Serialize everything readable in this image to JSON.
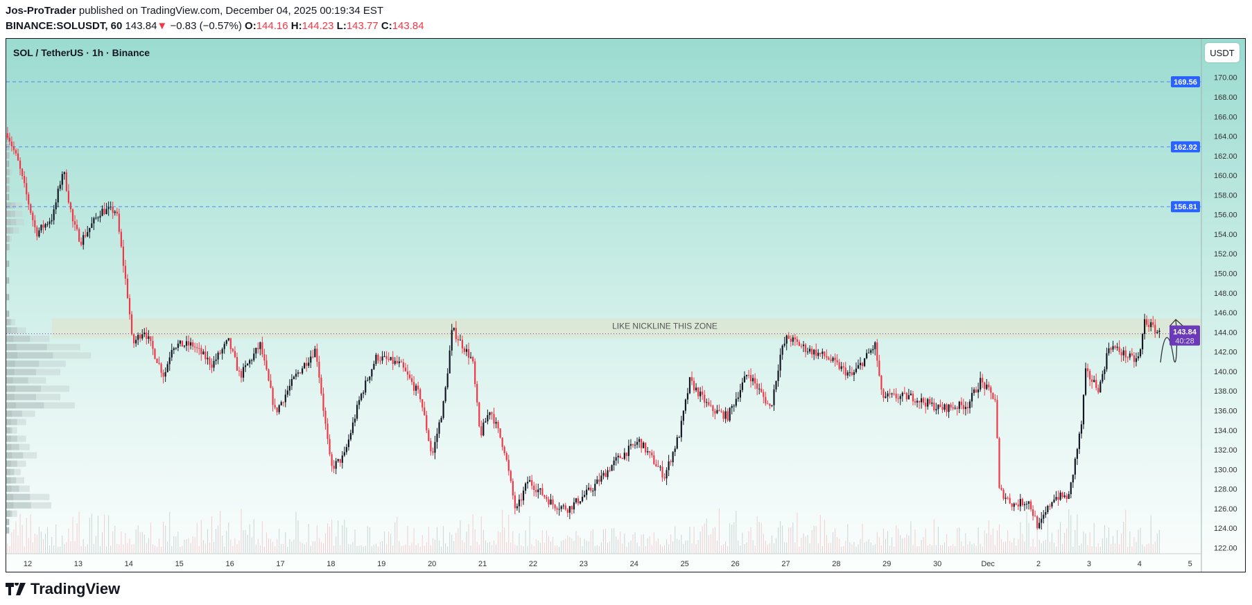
{
  "header": {
    "author": "Jos-ProTrader",
    "published": "published on TradingView.com, December 04, 2025 00:19:34 EST",
    "symbol": "BINANCE:SOLUSDT, 60",
    "last": "143.84",
    "change": "−0.83 (−0.57%)",
    "o_label": "O:",
    "o": "144.16",
    "h_label": "H:",
    "h": "144.23",
    "l_label": "L:",
    "l": "143.77",
    "c_label": "C:",
    "c": "143.84"
  },
  "chart_title": "SOL / TetherUS · 1h · Binance",
  "currency_button": "USDT",
  "logo_text": "TradingView",
  "colors": {
    "up": "#131722",
    "down": "#f23645",
    "level": "#2962ff",
    "price_tag": "#6a3ab8",
    "zone": "#dfe6d0"
  },
  "chart_data": {
    "type": "candlestick",
    "title": "SOL / TetherUS · 1h · Binance",
    "ylabel": "USDT",
    "ylim": [
      121,
      171.5
    ],
    "yticks": [
      "122.00",
      "124.00",
      "126.00",
      "128.00",
      "130.00",
      "132.00",
      "134.00",
      "136.00",
      "138.00",
      "140.00",
      "142.00",
      "144.00",
      "146.00",
      "148.00",
      "150.00",
      "152.00",
      "154.00",
      "156.00",
      "158.00",
      "160.00",
      "162.00",
      "164.00",
      "166.00",
      "168.00",
      "170.00"
    ],
    "x_day_range": [
      11.45,
      35.8
    ],
    "xticks": [
      {
        "day": 12,
        "label": "12"
      },
      {
        "day": 13,
        "label": "13"
      },
      {
        "day": 14,
        "label": "14"
      },
      {
        "day": 15,
        "label": "15"
      },
      {
        "day": 16,
        "label": "16"
      },
      {
        "day": 17,
        "label": "17"
      },
      {
        "day": 18,
        "label": "18"
      },
      {
        "day": 19,
        "label": "19"
      },
      {
        "day": 20,
        "label": "20"
      },
      {
        "day": 21,
        "label": "21"
      },
      {
        "day": 22,
        "label": "22"
      },
      {
        "day": 23,
        "label": "23"
      },
      {
        "day": 24,
        "label": "24"
      },
      {
        "day": 25,
        "label": "25"
      },
      {
        "day": 26,
        "label": "26"
      },
      {
        "day": 27,
        "label": "27"
      },
      {
        "day": 28,
        "label": "28"
      },
      {
        "day": 29,
        "label": "29"
      },
      {
        "day": 30,
        "label": "30"
      },
      {
        "day": 31,
        "label": "Dec"
      },
      {
        "day": 32,
        "label": "2"
      },
      {
        "day": 33,
        "label": "3"
      },
      {
        "day": 34,
        "label": "4"
      },
      {
        "day": 35,
        "label": "5"
      }
    ],
    "close_path_day_price": [
      [
        11.6,
        164.3
      ],
      [
        11.8,
        161.5
      ],
      [
        12.17,
        154.1
      ],
      [
        12.5,
        155.8
      ],
      [
        12.7,
        160.7
      ],
      [
        12.9,
        155
      ],
      [
        13.05,
        153.3
      ],
      [
        13.45,
        156.4
      ],
      [
        13.75,
        156.4
      ],
      [
        13.83,
        153.3
      ],
      [
        14.0,
        146.8
      ],
      [
        14.07,
        142.7
      ],
      [
        14.3,
        144.3
      ],
      [
        14.7,
        139.5
      ],
      [
        14.86,
        142.7
      ],
      [
        15.26,
        142.7
      ],
      [
        15.65,
        140.7
      ],
      [
        15.97,
        143.1
      ],
      [
        16.2,
        139.5
      ],
      [
        16.6,
        142.7
      ],
      [
        16.9,
        135.8
      ],
      [
        17.3,
        139.5
      ],
      [
        17.7,
        142.3
      ],
      [
        18.0,
        130.1
      ],
      [
        18.26,
        131.3
      ],
      [
        18.58,
        137.4
      ],
      [
        18.9,
        141.5
      ],
      [
        19.37,
        140.7
      ],
      [
        19.77,
        137.4
      ],
      [
        20.0,
        131.3
      ],
      [
        20.24,
        137
      ],
      [
        20.4,
        144.3
      ],
      [
        20.8,
        141.1
      ],
      [
        20.95,
        133.4
      ],
      [
        21.15,
        136.2
      ],
      [
        21.43,
        132.1
      ],
      [
        21.66,
        125.6
      ],
      [
        21.9,
        128.9
      ],
      [
        22.4,
        126.4
      ],
      [
        22.7,
        126
      ],
      [
        23.16,
        128
      ],
      [
        23.64,
        130.9
      ],
      [
        24.1,
        132.9
      ],
      [
        24.6,
        129.3
      ],
      [
        24.9,
        133.7
      ],
      [
        25.1,
        139
      ],
      [
        25.5,
        136.2
      ],
      [
        25.85,
        135.4
      ],
      [
        26.25,
        139.9
      ],
      [
        26.7,
        136.2
      ],
      [
        26.9,
        141.9
      ],
      [
        27.03,
        143.5
      ],
      [
        27.4,
        142.3
      ],
      [
        27.8,
        141.5
      ],
      [
        28.3,
        139.5
      ],
      [
        28.77,
        142.7
      ],
      [
        28.9,
        137.4
      ],
      [
        29.5,
        137.4
      ],
      [
        30.05,
        136.2
      ],
      [
        30.6,
        136.6
      ],
      [
        30.85,
        139
      ],
      [
        31.17,
        137
      ],
      [
        31.2,
        128
      ],
      [
        31.5,
        126.4
      ],
      [
        31.8,
        126.8
      ],
      [
        32.0,
        124
      ],
      [
        32.3,
        127.2
      ],
      [
        32.6,
        127.2
      ],
      [
        32.85,
        134.6
      ],
      [
        32.93,
        139.9
      ],
      [
        33.2,
        138.2
      ],
      [
        33.4,
        142.7
      ],
      [
        33.9,
        141.1
      ],
      [
        34.0,
        141.5
      ],
      [
        34.1,
        145.2
      ],
      [
        34.4,
        143.84
      ]
    ],
    "horizontal_levels": [
      {
        "price": 169.56,
        "label": "169.56"
      },
      {
        "price": 162.92,
        "label": "162.92"
      },
      {
        "price": 156.81,
        "label": "156.81"
      }
    ],
    "zone": {
      "from": 143.4,
      "to": 145.4,
      "label": "LIKE NICKLINE THIS ZONE"
    },
    "last_price": {
      "price": 143.84,
      "label": "143.84",
      "countdown": "40:28"
    },
    "annotation": "hand-drawn projection arrow upward toward ~149"
  }
}
